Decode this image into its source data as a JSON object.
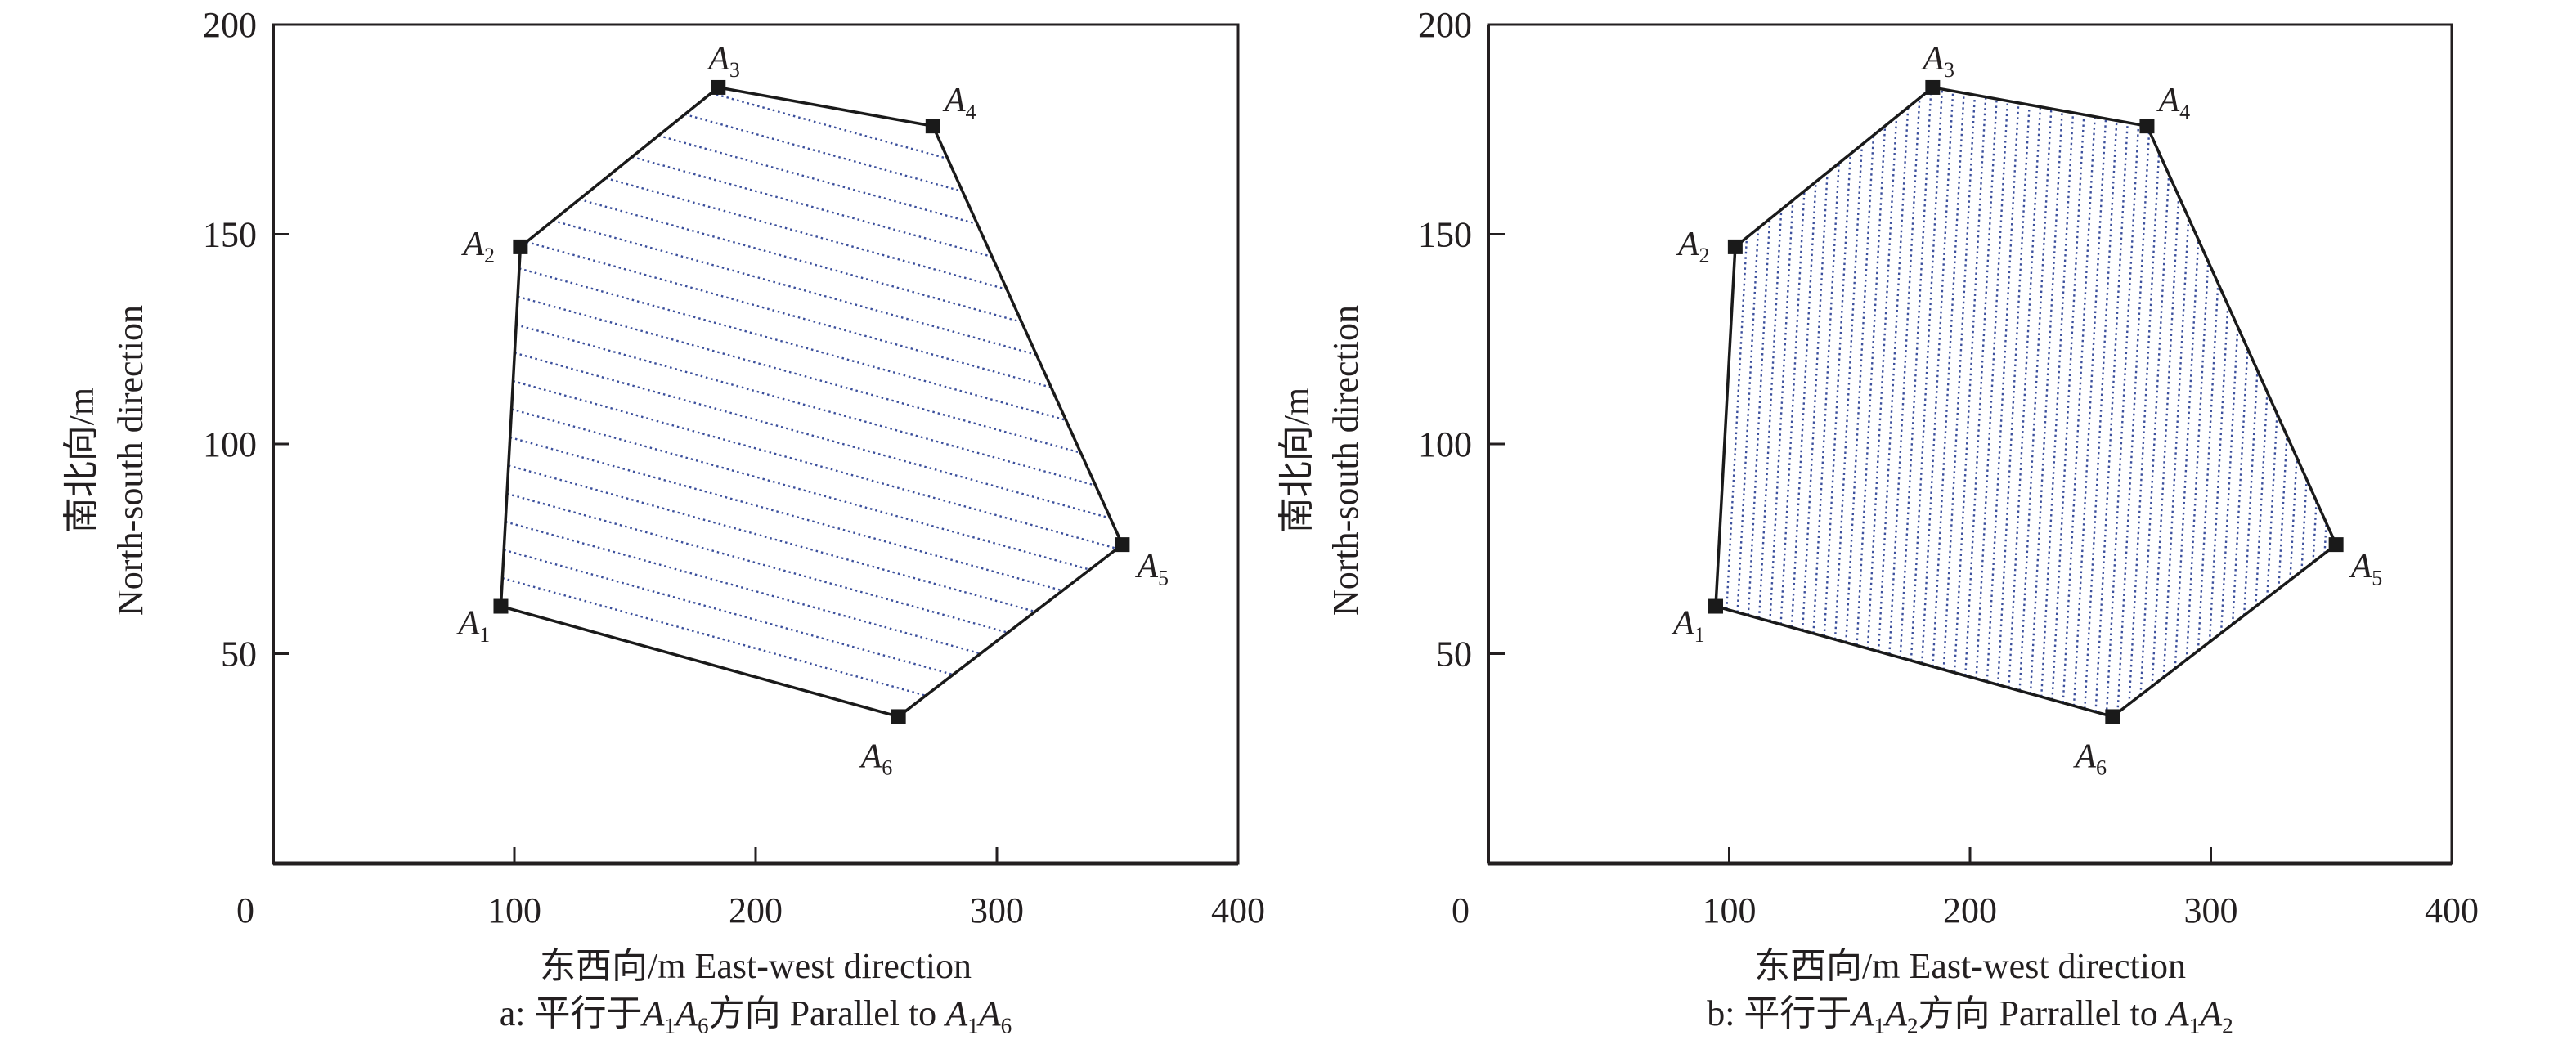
{
  "chart_data": [
    {
      "type": "scatter",
      "panel": "a",
      "title": "",
      "xlabel": "东西向/m East-west direction",
      "ylabel_cn": "南北向/m",
      "ylabel_en": "North-south direction",
      "caption": "a: 平行于A1A6方向  Parallel to A1A6",
      "xlim": [
        0,
        400
      ],
      "ylim": [
        0,
        200
      ],
      "xticks": [
        0,
        100,
        200,
        300,
        400
      ],
      "yticks": [
        50,
        100,
        150,
        200
      ],
      "points": [
        {
          "label": "A1",
          "x": 94.4,
          "y": 61.3
        },
        {
          "label": "A2",
          "x": 102.5,
          "y": 147
        },
        {
          "label": "A3",
          "x": 184.5,
          "y": 185
        },
        {
          "label": "A4",
          "x": 273.5,
          "y": 175.8
        },
        {
          "label": "A5",
          "x": 352,
          "y": 76
        },
        {
          "label": "A6",
          "x": 259.2,
          "y": 35
        }
      ],
      "hatch_direction": "parallel to A1A6",
      "hatch_count": 21
    },
    {
      "type": "scatter",
      "panel": "b",
      "title": "",
      "xlabel": "东西向/m East-west direction",
      "ylabel_cn": "南北向/m",
      "ylabel_en": "North-south direction",
      "caption": "b: 平行于A1A2方向  Parrallel to A1A2",
      "xlim": [
        0,
        400
      ],
      "ylim": [
        0,
        200
      ],
      "xticks": [
        0,
        100,
        200,
        300,
        400
      ],
      "yticks": [
        50,
        100,
        150,
        200
      ],
      "points": [
        {
          "label": "A1",
          "x": 94.4,
          "y": 61.3
        },
        {
          "label": "A2",
          "x": 102.5,
          "y": 147
        },
        {
          "label": "A3",
          "x": 184.5,
          "y": 185
        },
        {
          "label": "A4",
          "x": 273.5,
          "y": 175.8
        },
        {
          "label": "A5",
          "x": 352,
          "y": 76
        },
        {
          "label": "A6",
          "x": 259.2,
          "y": 35
        }
      ],
      "hatch_direction": "parallel to A1A2",
      "hatch_count": 56
    }
  ],
  "colors": {
    "axis": "#231f20",
    "polygon": "#1a1a1a",
    "hatch": "#3b4f9c"
  }
}
